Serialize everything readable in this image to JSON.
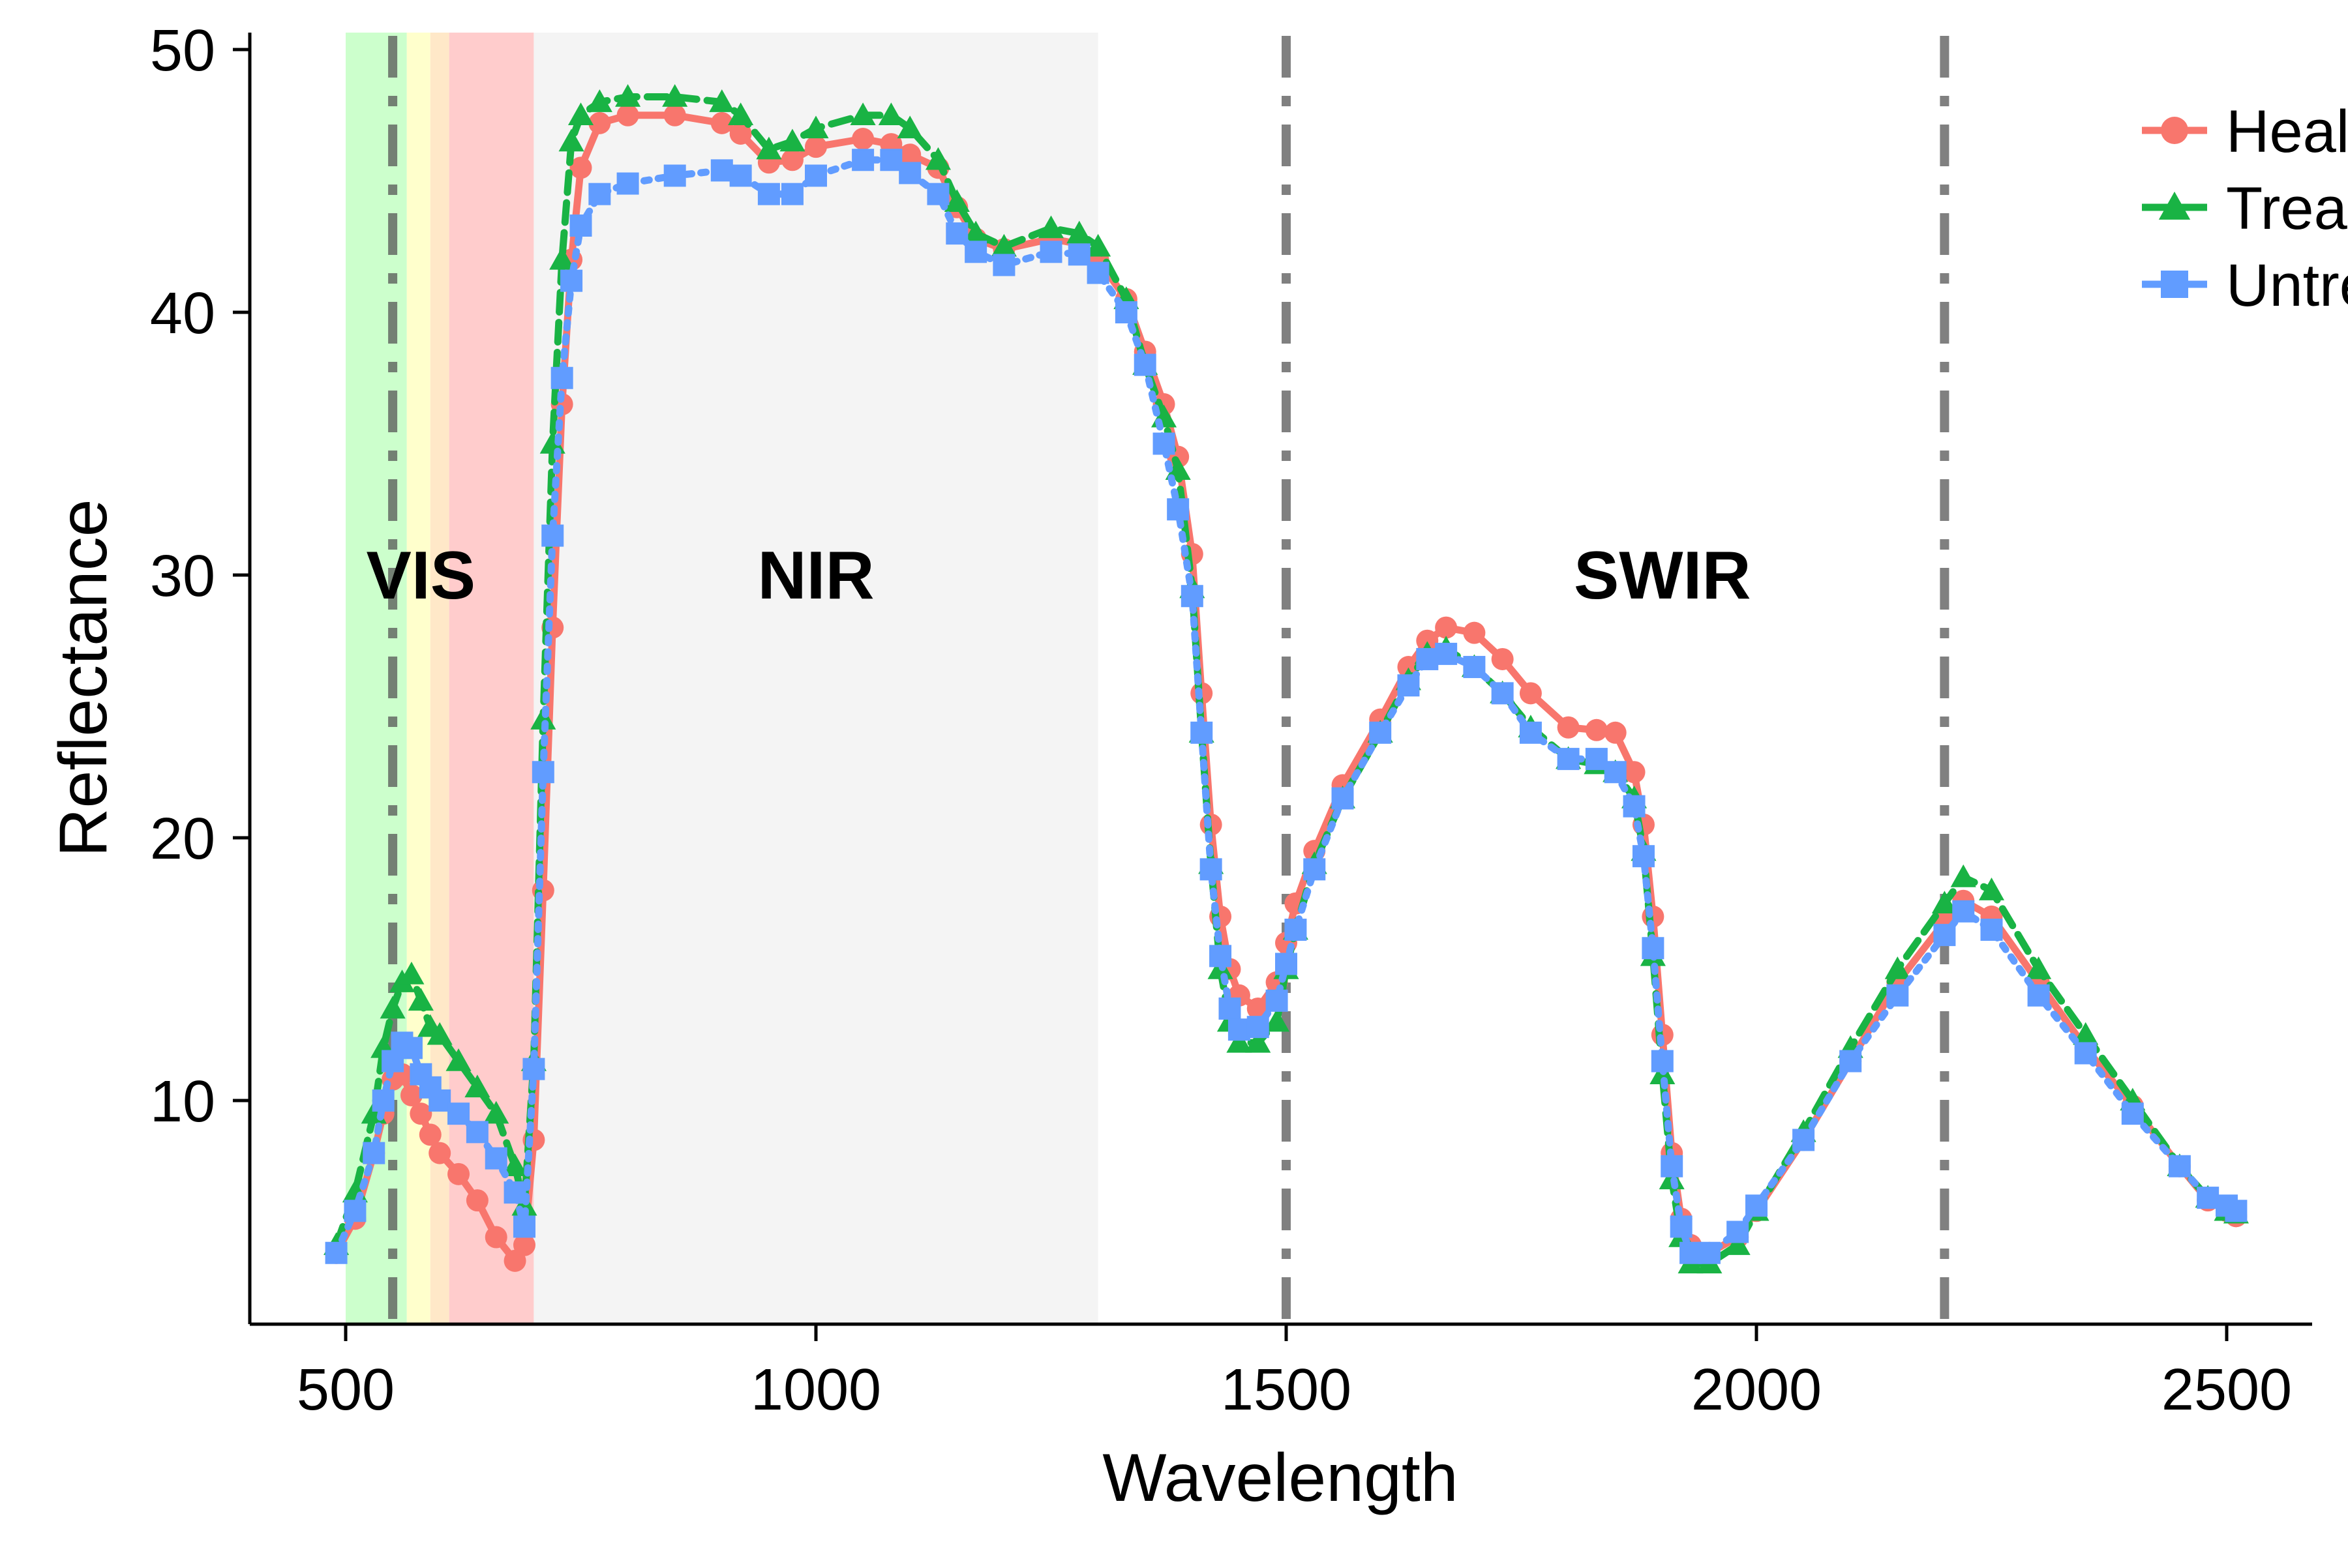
{
  "chart_data": {
    "type": "line",
    "title": "",
    "xlabel": "Wavelength",
    "ylabel": "Reflectance",
    "xlim": [
      400,
      2600
    ],
    "ylim": [
      1.5,
      50.2
    ],
    "xticks": [
      500,
      1000,
      1500,
      2000,
      2500
    ],
    "yticks": [
      10,
      20,
      30,
      40,
      50
    ],
    "grid": false,
    "legend_position": "top-right",
    "regions": [
      {
        "label": "VIS",
        "x": 580
      },
      {
        "label": "NIR",
        "x": 1000
      },
      {
        "label": "SWIR",
        "x": 1900
      }
    ],
    "bands": [
      {
        "from": 500,
        "to": 565,
        "color": "#ccffcc"
      },
      {
        "from": 565,
        "to": 590,
        "color": "#ffffcc"
      },
      {
        "from": 590,
        "to": 610,
        "color": "#ffe8c8"
      },
      {
        "from": 610,
        "to": 700,
        "color": "#ffcccc"
      },
      {
        "from": 700,
        "to": 1300,
        "color": "#f4f4f4"
      }
    ],
    "vlines": [
      550,
      1500,
      2200
    ],
    "series": [
      {
        "name": "Healthy",
        "color": "#f8766d",
        "marker": "circle",
        "points": [
          [
            490,
            4.2
          ],
          [
            510,
            5.5
          ],
          [
            530,
            8.0
          ],
          [
            540,
            9.5
          ],
          [
            550,
            10.8
          ],
          [
            560,
            11.0
          ],
          [
            570,
            10.2
          ],
          [
            580,
            9.5
          ],
          [
            590,
            8.7
          ],
          [
            600,
            8.0
          ],
          [
            620,
            7.2
          ],
          [
            640,
            6.2
          ],
          [
            660,
            4.8
          ],
          [
            680,
            3.9
          ],
          [
            690,
            4.5
          ],
          [
            700,
            8.5
          ],
          [
            710,
            18.0
          ],
          [
            720,
            28.0
          ],
          [
            730,
            36.5
          ],
          [
            740,
            42.0
          ],
          [
            750,
            45.5
          ],
          [
            770,
            47.2
          ],
          [
            800,
            47.5
          ],
          [
            850,
            47.5
          ],
          [
            900,
            47.2
          ],
          [
            920,
            46.8
          ],
          [
            950,
            45.7
          ],
          [
            975,
            45.8
          ],
          [
            1000,
            46.3
          ],
          [
            1050,
            46.6
          ],
          [
            1080,
            46.4
          ],
          [
            1100,
            46.0
          ],
          [
            1130,
            45.5
          ],
          [
            1150,
            44.0
          ],
          [
            1170,
            42.8
          ],
          [
            1200,
            42.4
          ],
          [
            1250,
            42.8
          ],
          [
            1280,
            42.6
          ],
          [
            1300,
            42.0
          ],
          [
            1330,
            40.5
          ],
          [
            1350,
            38.5
          ],
          [
            1370,
            36.5
          ],
          [
            1385,
            34.5
          ],
          [
            1400,
            30.8
          ],
          [
            1410,
            25.5
          ],
          [
            1420,
            20.5
          ],
          [
            1430,
            17.0
          ],
          [
            1440,
            15.0
          ],
          [
            1450,
            14.0
          ],
          [
            1470,
            13.5
          ],
          [
            1490,
            14.5
          ],
          [
            1500,
            16.0
          ],
          [
            1510,
            17.5
          ],
          [
            1530,
            19.5
          ],
          [
            1560,
            22.0
          ],
          [
            1600,
            24.5
          ],
          [
            1630,
            26.5
          ],
          [
            1650,
            27.5
          ],
          [
            1670,
            28.0
          ],
          [
            1700,
            27.8
          ],
          [
            1730,
            26.8
          ],
          [
            1760,
            25.5
          ],
          [
            1800,
            24.2
          ],
          [
            1830,
            24.1
          ],
          [
            1850,
            24.0
          ],
          [
            1870,
            22.5
          ],
          [
            1880,
            20.5
          ],
          [
            1890,
            17.0
          ],
          [
            1900,
            12.5
          ],
          [
            1910,
            8.0
          ],
          [
            1920,
            5.5
          ],
          [
            1930,
            4.5
          ],
          [
            1950,
            4.2
          ],
          [
            1980,
            4.8
          ],
          [
            2000,
            5.8
          ],
          [
            2050,
            8.5
          ],
          [
            2100,
            11.5
          ],
          [
            2150,
            14.5
          ],
          [
            2200,
            16.8
          ],
          [
            2220,
            17.6
          ],
          [
            2250,
            17.0
          ],
          [
            2300,
            14.5
          ],
          [
            2350,
            12.0
          ],
          [
            2400,
            9.8
          ],
          [
            2450,
            7.5
          ],
          [
            2480,
            6.2
          ],
          [
            2500,
            5.8
          ],
          [
            2510,
            5.6
          ]
        ]
      },
      {
        "name": "Treated",
        "color": "#19b344",
        "marker": "triangle",
        "points": [
          [
            490,
            4.5
          ],
          [
            510,
            6.5
          ],
          [
            530,
            9.5
          ],
          [
            540,
            12.0
          ],
          [
            550,
            13.5
          ],
          [
            560,
            14.5
          ],
          [
            570,
            14.8
          ],
          [
            580,
            13.8
          ],
          [
            590,
            12.8
          ],
          [
            600,
            12.5
          ],
          [
            620,
            11.5
          ],
          [
            640,
            10.5
          ],
          [
            660,
            9.5
          ],
          [
            680,
            7.5
          ],
          [
            690,
            6.0
          ],
          [
            700,
            11.5
          ],
          [
            710,
            24.5
          ],
          [
            720,
            35.0
          ],
          [
            730,
            42.0
          ],
          [
            740,
            46.5
          ],
          [
            750,
            47.5
          ],
          [
            770,
            48.0
          ],
          [
            800,
            48.2
          ],
          [
            850,
            48.2
          ],
          [
            900,
            48.0
          ],
          [
            920,
            47.5
          ],
          [
            950,
            46.2
          ],
          [
            975,
            46.5
          ],
          [
            1000,
            47.0
          ],
          [
            1050,
            47.5
          ],
          [
            1080,
            47.5
          ],
          [
            1100,
            47.0
          ],
          [
            1130,
            45.8
          ],
          [
            1150,
            44.2
          ],
          [
            1170,
            43.0
          ],
          [
            1200,
            42.5
          ],
          [
            1250,
            43.2
          ],
          [
            1280,
            43.0
          ],
          [
            1300,
            42.5
          ],
          [
            1330,
            40.5
          ],
          [
            1350,
            38.0
          ],
          [
            1370,
            36.0
          ],
          [
            1385,
            34.0
          ],
          [
            1400,
            29.5
          ],
          [
            1410,
            24.0
          ],
          [
            1420,
            19.0
          ],
          [
            1430,
            15.0
          ],
          [
            1440,
            13.0
          ],
          [
            1450,
            12.2
          ],
          [
            1470,
            12.2
          ],
          [
            1490,
            13.0
          ],
          [
            1500,
            15.0
          ],
          [
            1510,
            16.5
          ],
          [
            1530,
            19.0
          ],
          [
            1560,
            21.5
          ],
          [
            1600,
            24.0
          ],
          [
            1630,
            26.0
          ],
          [
            1650,
            27.0
          ],
          [
            1670,
            27.2
          ],
          [
            1700,
            26.5
          ],
          [
            1730,
            25.5
          ],
          [
            1760,
            24.2
          ],
          [
            1800,
            23.0
          ],
          [
            1830,
            22.8
          ],
          [
            1850,
            22.5
          ],
          [
            1870,
            21.5
          ],
          [
            1880,
            19.5
          ],
          [
            1890,
            15.5
          ],
          [
            1900,
            11.0
          ],
          [
            1910,
            7.0
          ],
          [
            1920,
            4.8
          ],
          [
            1930,
            3.8
          ],
          [
            1950,
            3.8
          ],
          [
            1980,
            4.5
          ],
          [
            2000,
            5.8
          ],
          [
            2050,
            8.8
          ],
          [
            2100,
            12.0
          ],
          [
            2150,
            15.0
          ],
          [
            2200,
            17.5
          ],
          [
            2220,
            18.5
          ],
          [
            2250,
            18.0
          ],
          [
            2300,
            15.0
          ],
          [
            2350,
            12.5
          ],
          [
            2400,
            10.0
          ],
          [
            2450,
            7.5
          ],
          [
            2480,
            6.3
          ],
          [
            2500,
            5.8
          ],
          [
            2510,
            5.7
          ]
        ]
      },
      {
        "name": "Untreated",
        "color": "#619cff",
        "marker": "square",
        "points": [
          [
            490,
            4.2
          ],
          [
            510,
            5.8
          ],
          [
            530,
            8.0
          ],
          [
            540,
            10.0
          ],
          [
            550,
            11.5
          ],
          [
            560,
            12.2
          ],
          [
            570,
            12.0
          ],
          [
            580,
            11.0
          ],
          [
            590,
            10.5
          ],
          [
            600,
            10.0
          ],
          [
            620,
            9.5
          ],
          [
            640,
            8.8
          ],
          [
            660,
            7.8
          ],
          [
            680,
            6.5
          ],
          [
            690,
            5.2
          ],
          [
            700,
            11.2
          ],
          [
            710,
            22.5
          ],
          [
            720,
            31.5
          ],
          [
            730,
            37.5
          ],
          [
            740,
            41.2
          ],
          [
            750,
            43.3
          ],
          [
            770,
            44.5
          ],
          [
            800,
            44.9
          ],
          [
            850,
            45.2
          ],
          [
            900,
            45.4
          ],
          [
            920,
            45.2
          ],
          [
            950,
            44.5
          ],
          [
            975,
            44.5
          ],
          [
            1000,
            45.2
          ],
          [
            1050,
            45.8
          ],
          [
            1080,
            45.8
          ],
          [
            1100,
            45.3
          ],
          [
            1130,
            44.5
          ],
          [
            1150,
            43.0
          ],
          [
            1170,
            42.3
          ],
          [
            1200,
            41.8
          ],
          [
            1250,
            42.3
          ],
          [
            1280,
            42.2
          ],
          [
            1300,
            41.5
          ],
          [
            1330,
            40.0
          ],
          [
            1350,
            38.0
          ],
          [
            1370,
            35.0
          ],
          [
            1385,
            32.5
          ],
          [
            1400,
            29.2
          ],
          [
            1410,
            24.0
          ],
          [
            1420,
            18.8
          ],
          [
            1430,
            15.5
          ],
          [
            1440,
            13.5
          ],
          [
            1450,
            12.7
          ],
          [
            1470,
            12.8
          ],
          [
            1490,
            13.8
          ],
          [
            1500,
            15.2
          ],
          [
            1510,
            16.5
          ],
          [
            1530,
            18.8
          ],
          [
            1560,
            21.5
          ],
          [
            1600,
            24.0
          ],
          [
            1630,
            25.8
          ],
          [
            1650,
            26.8
          ],
          [
            1670,
            27.0
          ],
          [
            1700,
            26.5
          ],
          [
            1730,
            25.5
          ],
          [
            1760,
            24.0
          ],
          [
            1800,
            23.0
          ],
          [
            1830,
            23.0
          ],
          [
            1850,
            22.5
          ],
          [
            1870,
            21.2
          ],
          [
            1880,
            19.3
          ],
          [
            1890,
            15.8
          ],
          [
            1900,
            11.5
          ],
          [
            1910,
            7.5
          ],
          [
            1920,
            5.2
          ],
          [
            1930,
            4.2
          ],
          [
            1950,
            4.2
          ],
          [
            1980,
            5.0
          ],
          [
            2000,
            6.0
          ],
          [
            2050,
            8.5
          ],
          [
            2100,
            11.5
          ],
          [
            2150,
            14.0
          ],
          [
            2200,
            16.3
          ],
          [
            2220,
            17.2
          ],
          [
            2250,
            16.5
          ],
          [
            2300,
            14.0
          ],
          [
            2350,
            11.8
          ],
          [
            2400,
            9.5
          ],
          [
            2450,
            7.5
          ],
          [
            2480,
            6.3
          ],
          [
            2500,
            6.0
          ],
          [
            2510,
            5.8
          ]
        ]
      }
    ]
  }
}
